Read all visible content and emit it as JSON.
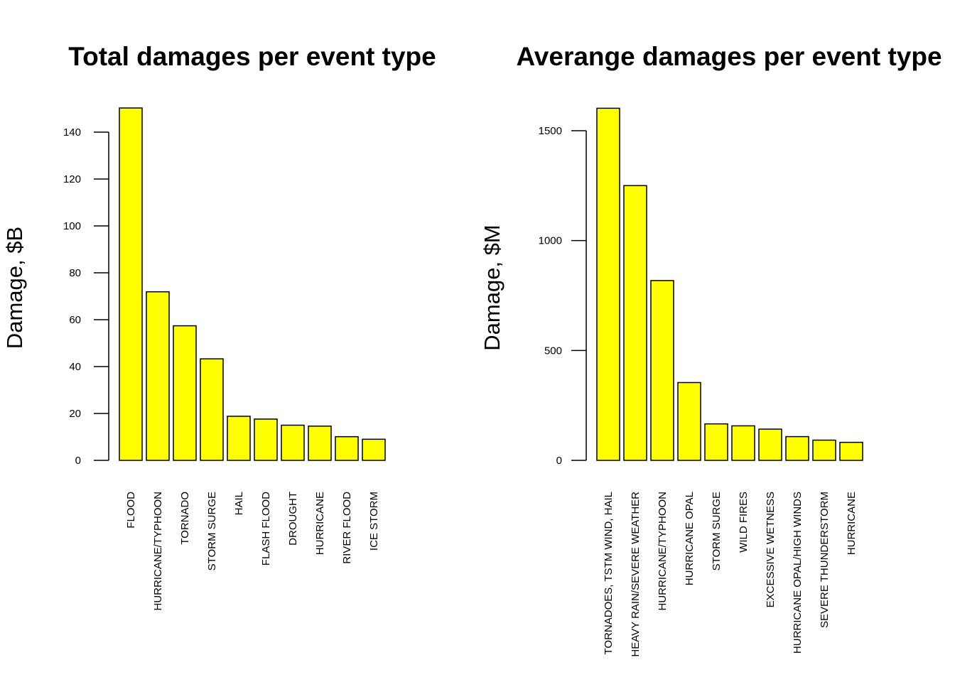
{
  "colors": {
    "bar_fill": "#ffff00",
    "bar_stroke": "#000000",
    "background": "#ffffff"
  },
  "chart_data": [
    {
      "type": "bar",
      "title": "Total damages per event type",
      "xlabel": "",
      "ylabel": "Damage, $B",
      "ylim": [
        0,
        150
      ],
      "yticks": [
        0,
        20,
        40,
        60,
        80,
        100,
        120,
        140
      ],
      "ytick_labels": [
        "0",
        "20",
        "40",
        "60",
        "80",
        "100",
        "120",
        "140"
      ],
      "categories": [
        "FLOOD",
        "HURRICANE/TYPHOON",
        "TORNADO",
        "STORM SURGE",
        "HAIL",
        "FLASH FLOOD",
        "DROUGHT",
        "HURRICANE",
        "RIVER FLOOD",
        "ICE STORM"
      ],
      "values": [
        150.3,
        71.9,
        57.4,
        43.3,
        18.8,
        17.6,
        15.0,
        14.6,
        10.1,
        9.0
      ],
      "grid": false,
      "legend": "none"
    },
    {
      "type": "bar",
      "title": "Averange damages per event type",
      "xlabel": "",
      "ylabel": "Damage, $M",
      "ylim": [
        0,
        1600
      ],
      "yticks": [
        0,
        500,
        1000,
        1500
      ],
      "ytick_labels": [
        "0",
        "500",
        "1000",
        "1500"
      ],
      "categories": [
        "TORNADOES, TSTM WIND, HAIL",
        "HEAVY RAIN/SEVERE WEATHER",
        "HURRICANE/TYPHOON",
        "HURRICANE OPAL",
        "STORM SURGE",
        "WILD FIRES",
        "EXCESSIVE WETNESS",
        "HURRICANE OPAL/HIGH WINDS",
        "SEVERE THUNDERSTORM",
        "HURRICANE"
      ],
      "values": [
        1602,
        1250,
        818,
        354,
        166,
        157,
        142,
        108,
        92,
        82
      ],
      "grid": false,
      "legend": "none"
    }
  ]
}
